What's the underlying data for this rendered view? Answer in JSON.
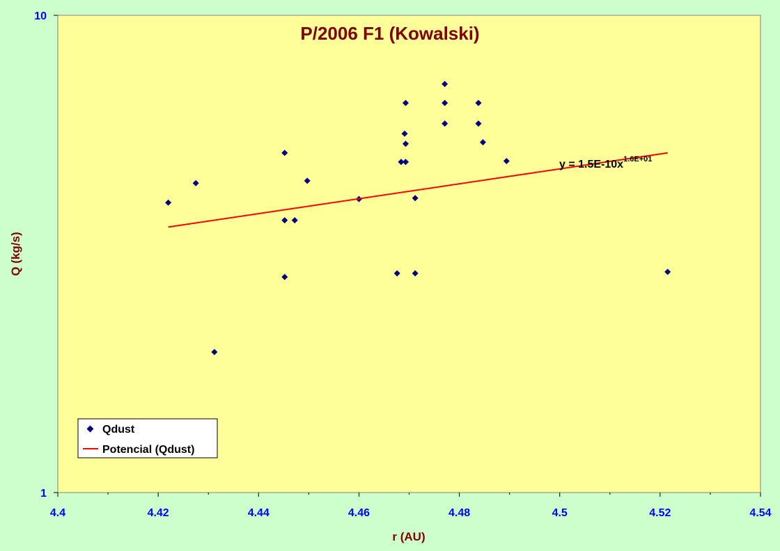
{
  "chart_data": {
    "type": "scatter",
    "title": "P/2006 F1 (Kowalski)",
    "xlabel": "r (AU)",
    "ylabel": "Q (kg/s)",
    "xlim": [
      4.4,
      4.54
    ],
    "ylim": [
      1,
      10
    ],
    "yscale": "log",
    "x_ticks": [
      "4.4",
      "4.42",
      "4.44",
      "4.46",
      "4.48",
      "4.5",
      "4.52",
      "4.54"
    ],
    "y_ticks": [
      "1",
      "10"
    ],
    "grid": false,
    "legend_position": "bottom-left",
    "equation": {
      "base": "y = 1.5E-10x",
      "exponent": "1.6E+01"
    },
    "colors": {
      "plot_bg": "#ffff99",
      "page_bg": "#ccffcc",
      "points": "#000080",
      "trendline": "#ff0000",
      "ticks": "#0000ff",
      "titles": "#800000"
    },
    "series": [
      {
        "name": "Qdust",
        "kind": "scatter",
        "x": [
          4.422,
          4.4275,
          4.4312,
          4.4452,
          4.4452,
          4.4452,
          4.4472,
          4.4497,
          4.46,
          4.4676,
          4.4684,
          4.4691,
          4.4693,
          4.4693,
          4.4693,
          4.4712,
          4.4712,
          4.4771,
          4.4771,
          4.4771,
          4.4838,
          4.4838,
          4.4847,
          4.4894,
          4.5215
        ],
        "y": [
          4.05,
          4.45,
          1.97,
          5.15,
          3.72,
          2.83,
          3.72,
          4.5,
          4.12,
          2.88,
          4.93,
          5.65,
          4.93,
          5.38,
          6.55,
          4.14,
          2.88,
          6.55,
          7.18,
          5.93,
          6.55,
          5.93,
          5.42,
          4.95,
          2.9
        ]
      },
      {
        "name": "Potencial (Qdust)",
        "kind": "trendline",
        "x": [
          4.422,
          4.5215
        ],
        "y": [
          3.6,
          5.15
        ]
      }
    ]
  }
}
